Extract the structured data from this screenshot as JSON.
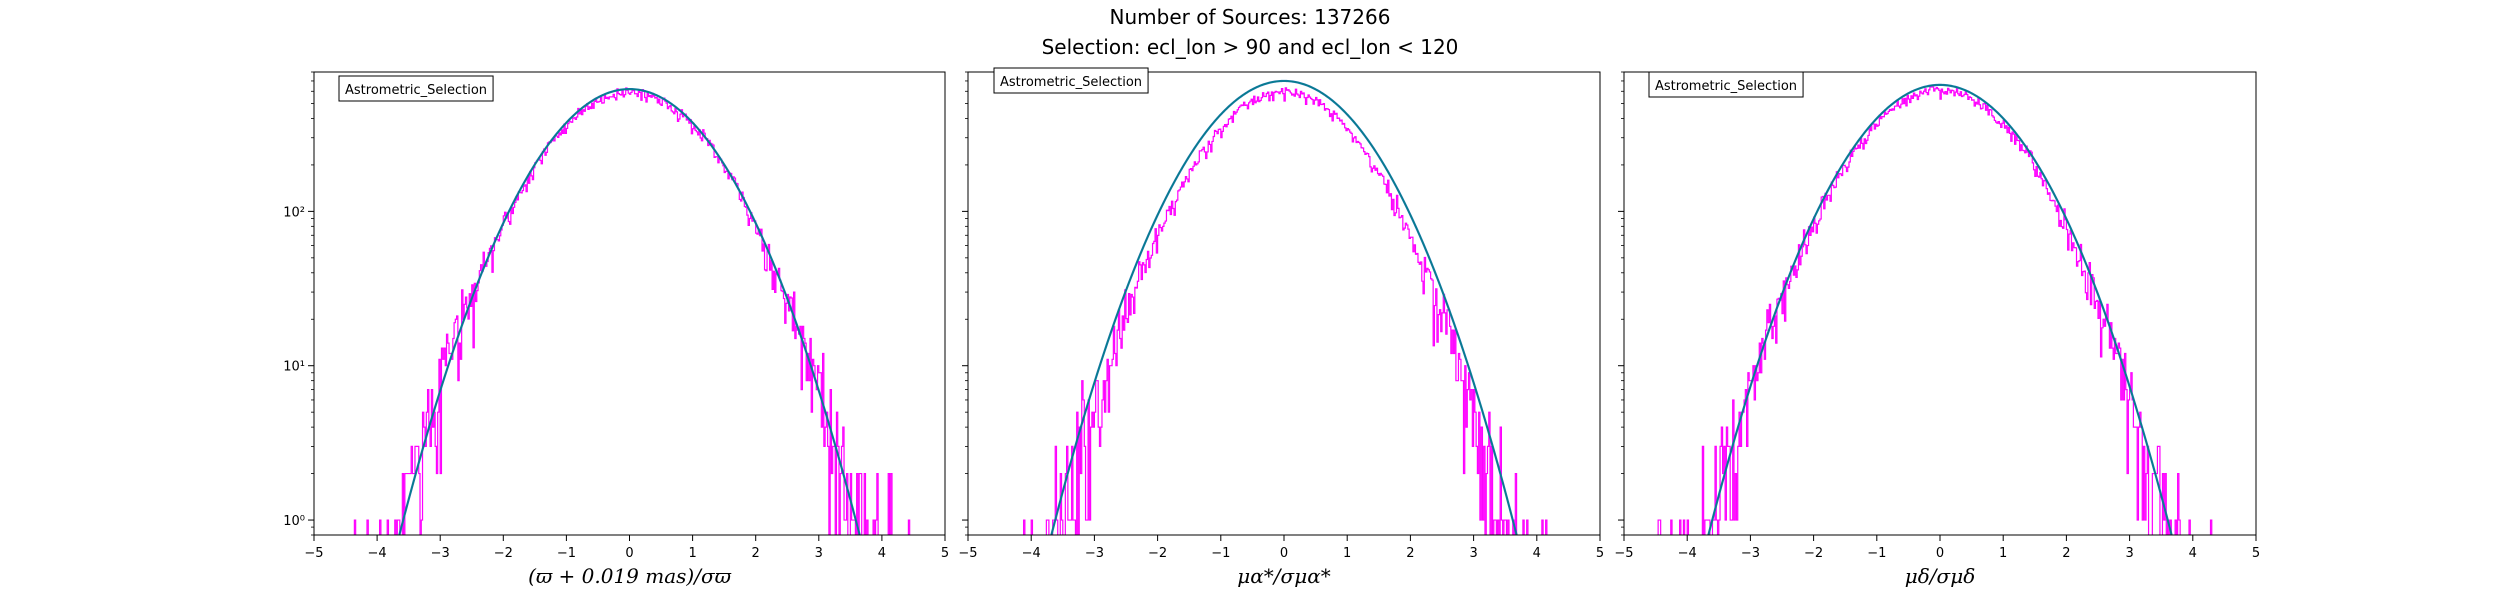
{
  "figure": {
    "title_line1": "Number of Sources: 137266",
    "title_line2": "Selection: ecl_lon > 90 and ecl_lon < 120"
  },
  "colors": {
    "histogram": "#ff00ff",
    "model": "#1f77b4",
    "model_overlay": "#008080",
    "axes": "#000000"
  },
  "chart_data": [
    {
      "type": "line",
      "panel": "parallax",
      "legend": "Astrometric_Selection",
      "legend_loc": "upper-left",
      "xlabel": "(ϖ + 0.019 mas)/σϖ",
      "ylabel": "",
      "xlim": [
        -5,
        5
      ],
      "ylim": [
        0.8,
        800
      ],
      "yscale": "log",
      "xticks": [
        -5,
        -4,
        -3,
        -2,
        -1,
        0,
        1,
        2,
        3,
        4,
        5
      ],
      "yticks": [
        {
          "value": 1,
          "label": "10⁰"
        },
        {
          "value": 10,
          "label": "10¹"
        },
        {
          "value": 100,
          "label": "10²"
        }
      ],
      "grid": false,
      "series": [
        {
          "name": "histogram (step)",
          "kind": "step",
          "bin_width": 0.02,
          "peak": 600,
          "sigma": 1.0,
          "seed": 11
        },
        {
          "name": "gaussian model",
          "kind": "curve",
          "peak": 620,
          "sigma": 1.0,
          "x_range": [
            -4.05,
            4.05
          ]
        }
      ]
    },
    {
      "type": "line",
      "panel": "pmra",
      "legend": "Astrometric_Selection",
      "legend_loc": "upper-left",
      "xlabel": "μα*/σμα*",
      "ylabel": "",
      "xlim": [
        -5,
        5
      ],
      "ylim": [
        0.8,
        800
      ],
      "yscale": "log",
      "xticks": [
        -5,
        -4,
        -3,
        -2,
        -1,
        0,
        1,
        2,
        3,
        4,
        5
      ],
      "yticks": [
        {
          "value": 1,
          "label": "10⁰"
        },
        {
          "value": 10,
          "label": "10¹"
        },
        {
          "value": 100,
          "label": "10²"
        }
      ],
      "grid": false,
      "series": [
        {
          "name": "histogram (step)",
          "kind": "step",
          "bin_width": 0.02,
          "peak": 600,
          "sigma": 0.96,
          "seed": 23
        },
        {
          "name": "gaussian model",
          "kind": "curve",
          "peak": 700,
          "sigma": 1.0,
          "x_range": [
            -4.05,
            4.05
          ]
        }
      ]
    },
    {
      "type": "line",
      "panel": "pmdec",
      "legend": "Astrometric_Selection",
      "legend_loc": "upper-left",
      "xlabel": "μδ/σμδ",
      "ylabel": "",
      "xlim": [
        -5,
        5
      ],
      "ylim": [
        0.8,
        800
      ],
      "yscale": "log",
      "xticks": [
        -5,
        -4,
        -3,
        -2,
        -1,
        0,
        1,
        2,
        3,
        4,
        5
      ],
      "yticks": [
        {
          "value": 1,
          "label": "10⁰"
        },
        {
          "value": 10,
          "label": "10¹"
        },
        {
          "value": 100,
          "label": "10²"
        }
      ],
      "grid": false,
      "series": [
        {
          "name": "histogram (step)",
          "kind": "step",
          "bin_width": 0.02,
          "peak": 620,
          "sigma": 0.99,
          "seed": 37
        },
        {
          "name": "gaussian model",
          "kind": "curve",
          "peak": 660,
          "sigma": 1.0,
          "x_range": [
            -4.05,
            4.05
          ]
        }
      ]
    }
  ]
}
